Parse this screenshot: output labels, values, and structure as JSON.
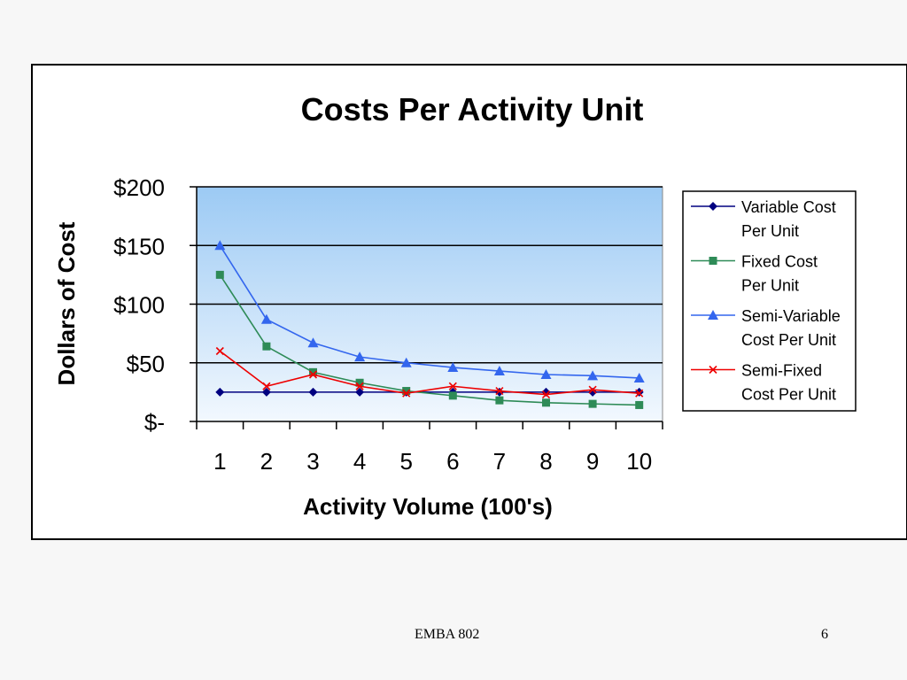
{
  "chart_data": {
    "type": "line",
    "title": "Costs Per Activity Unit",
    "xlabel": "Activity Volume (100's)",
    "ylabel": "Dollars of Cost",
    "categories": [
      "1",
      "2",
      "3",
      "4",
      "5",
      "6",
      "7",
      "8",
      "9",
      "10"
    ],
    "ylim": [
      0,
      200
    ],
    "yticks": [
      {
        "value": 0,
        "label": "$-"
      },
      {
        "value": 50,
        "label": "$50"
      },
      {
        "value": 100,
        "label": "$100"
      },
      {
        "value": 150,
        "label": "$150"
      },
      {
        "value": 200,
        "label": "$200"
      }
    ],
    "grid": true,
    "legend_position": "right",
    "series": [
      {
        "name": "Variable Cost Per Unit",
        "name_lines": [
          "Variable Cost",
          "Per Unit"
        ],
        "color": "#000080",
        "marker": "diamond",
        "values": [
          25,
          25,
          25,
          25,
          25,
          25,
          25,
          25,
          25,
          25
        ]
      },
      {
        "name": "Fixed Cost Per Unit",
        "name_lines": [
          "Fixed Cost",
          "Per Unit"
        ],
        "color": "#2e8b57",
        "marker": "square",
        "values": [
          125,
          64,
          42,
          33,
          26,
          22,
          18,
          16,
          15,
          14
        ]
      },
      {
        "name": "Semi-Variable Cost Per Unit",
        "name_lines": [
          "Semi-Variable",
          "Cost Per Unit"
        ],
        "color": "#3366ee",
        "marker": "triangle",
        "values": [
          150,
          87,
          67,
          55,
          50,
          46,
          43,
          40,
          39,
          37
        ]
      },
      {
        "name": "Semi-Fixed Cost Per Unit",
        "name_lines": [
          "Semi-Fixed",
          "Cost Per Unit"
        ],
        "color": "#ee0000",
        "marker": "x",
        "values": [
          60,
          30,
          40,
          30,
          24,
          30,
          26,
          23,
          27,
          24
        ]
      }
    ],
    "plot_background": [
      "#9ccaf4",
      "#f2f8fe"
    ]
  },
  "footer": {
    "center_text": "EMBA 802",
    "page_number": "6"
  }
}
